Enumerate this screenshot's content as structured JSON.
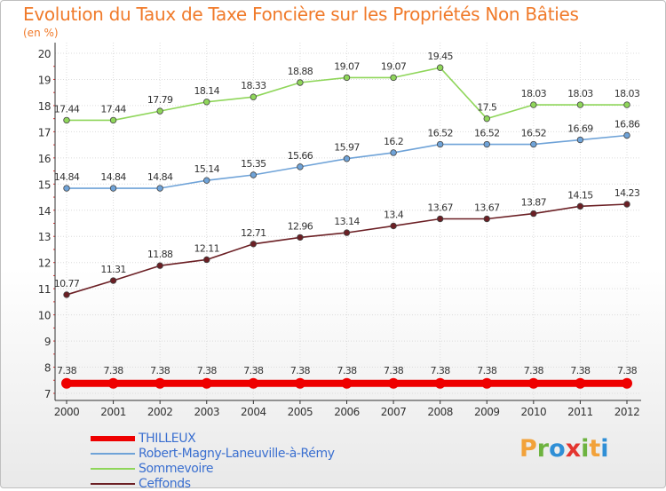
{
  "title": "Evolution du Taux de Taxe Foncière sur les Propriétés Non Bâties",
  "unit": "(en %)",
  "logo": {
    "text": "Proxiti",
    "letters": [
      "P",
      "r",
      "o",
      "x",
      "i",
      "t",
      "i"
    ],
    "colors": [
      "#f2a23a",
      "#6db33f",
      "#2f8fd6",
      "#e4352f",
      "#6db33f",
      "#f2a23a",
      "#2f8fd6"
    ]
  },
  "chart_data": {
    "type": "line",
    "title": "Evolution du Taux de Taxe Foncière sur les Propriétés Non Bâties",
    "ylabel": "(en %)",
    "xlabel": "",
    "x": [
      2000,
      2001,
      2002,
      2003,
      2004,
      2005,
      2006,
      2007,
      2008,
      2009,
      2010,
      2011,
      2012
    ],
    "ylim": [
      7,
      20
    ],
    "yticks": [
      7,
      8,
      9,
      10,
      11,
      12,
      13,
      14,
      15,
      16,
      17,
      18,
      19,
      20
    ],
    "grid": true,
    "legend_position": "bottom-left",
    "series": [
      {
        "name": "THILLEUX",
        "color": "#ee0000",
        "values": [
          7.38,
          7.38,
          7.38,
          7.38,
          7.38,
          7.38,
          7.38,
          7.38,
          7.38,
          7.38,
          7.38,
          7.38,
          7.38
        ],
        "labels": [
          "7.38",
          "7.38",
          "7.38",
          "7.38",
          "7.38",
          "7.38",
          "7.38",
          "7.38",
          "7.38",
          "7.38",
          "7.38",
          "7.38",
          "7.38"
        ]
      },
      {
        "name": "Robert-Magny-Laneuville-à-Rémy",
        "color": "#6fa3d8",
        "values": [
          14.84,
          14.84,
          14.84,
          15.14,
          15.35,
          15.66,
          15.97,
          16.2,
          16.52,
          16.52,
          16.52,
          16.69,
          16.86
        ],
        "labels": [
          "14.84",
          "14.84",
          "14.84",
          "15.14",
          "15.35",
          "15.66",
          "15.97",
          "16.2",
          "16.52",
          "16.52",
          "16.52",
          "16.69",
          "16.86"
        ]
      },
      {
        "name": "Sommevoire",
        "color": "#8fd65a",
        "values": [
          17.44,
          17.44,
          17.79,
          18.14,
          18.33,
          18.88,
          19.07,
          19.07,
          19.45,
          17.5,
          18.03,
          18.03,
          18.03
        ],
        "labels": [
          "17.44",
          "17.44",
          "17.79",
          "18.14",
          "18.33",
          "18.88",
          "19.07",
          "19.07",
          "19.45",
          "17.5",
          "18.03",
          "18.03",
          "18.03"
        ]
      },
      {
        "name": "Ceffonds",
        "color": "#6b1f24",
        "values": [
          10.77,
          11.31,
          11.88,
          12.11,
          12.71,
          12.96,
          13.14,
          13.4,
          13.67,
          13.67,
          13.87,
          14.15,
          14.23
        ],
        "labels": [
          "10.77",
          "11.31",
          "11.88",
          "12.11",
          "12.71",
          "12.96",
          "13.14",
          "13.4",
          "13.67",
          "13.67",
          "13.87",
          "14.15",
          "14.23"
        ]
      }
    ]
  }
}
